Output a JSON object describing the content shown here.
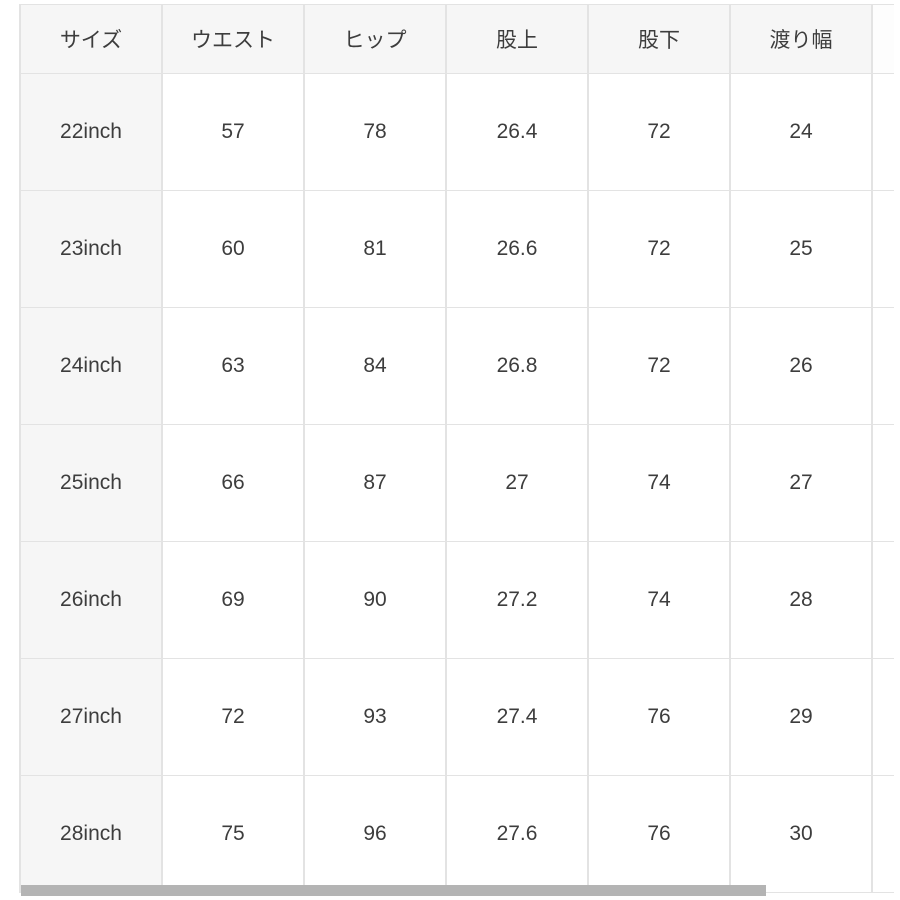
{
  "table": {
    "headers": [
      "サイズ",
      "ウエスト",
      "ヒップ",
      "股上",
      "股下",
      "渡り幅"
    ],
    "rows": [
      [
        "22inch",
        "57",
        "78",
        "26.4",
        "72",
        "24"
      ],
      [
        "23inch",
        "60",
        "81",
        "26.6",
        "72",
        "25"
      ],
      [
        "24inch",
        "63",
        "84",
        "26.8",
        "72",
        "26"
      ],
      [
        "25inch",
        "66",
        "87",
        "27",
        "74",
        "27"
      ],
      [
        "26inch",
        "69",
        "90",
        "27.2",
        "74",
        "28"
      ],
      [
        "27inch",
        "72",
        "93",
        "27.4",
        "76",
        "29"
      ],
      [
        "28inch",
        "75",
        "96",
        "27.6",
        "76",
        "30"
      ]
    ]
  },
  "scrollbar": {
    "orientation": "horizontal"
  },
  "colors": {
    "header_bg": "#f6f6f6",
    "label_column_bg": "#f6f6f6",
    "cell_bg": "#ffffff",
    "border": "#e3e3e3",
    "text": "#3d3d3d",
    "scrollbar_thumb": "#b4b4b4",
    "page_bg": "#ffffff"
  }
}
